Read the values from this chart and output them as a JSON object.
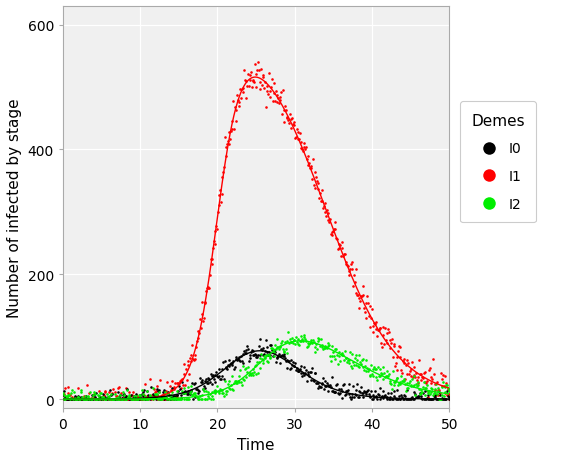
{
  "title": "",
  "xlabel": "Time",
  "ylabel": "Number of infected by stage",
  "xlim": [
    0,
    50
  ],
  "ylim": [
    -15,
    630
  ],
  "yticks": [
    0,
    200,
    400,
    600
  ],
  "xticks": [
    0,
    10,
    20,
    30,
    40,
    50
  ],
  "legend_title": "Demes",
  "legend_entries": [
    "I0",
    "I1",
    "I2"
  ],
  "legend_colors": [
    "black",
    "red",
    "#00ee00"
  ],
  "background_color": "#ffffff",
  "grid_color": "#d0d0d0",
  "panel_bg": "#f0f0f0",
  "seed": 42,
  "n_pts": 500,
  "dot_size": 3.5,
  "line_width": 1.0
}
